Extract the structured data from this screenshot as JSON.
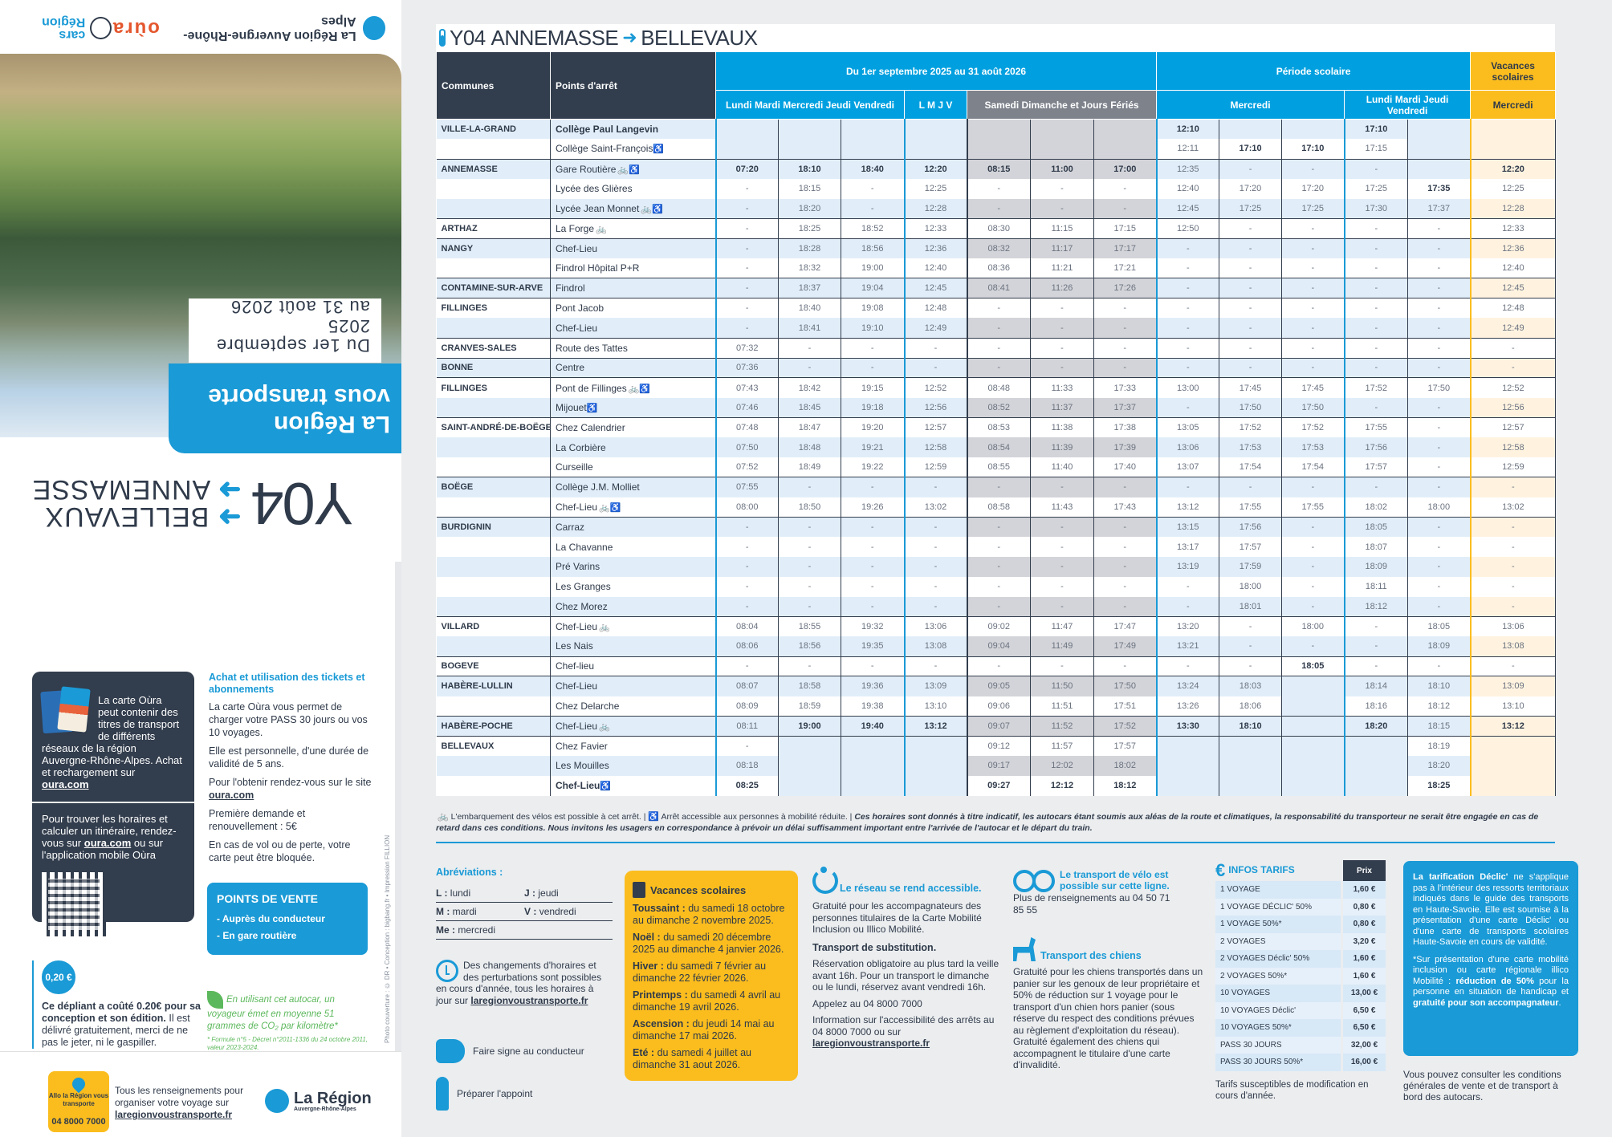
{
  "cover": {
    "route": "Y04",
    "direction_1": "BELLEVAUX",
    "direction_2": "ANNEMASSE",
    "banner_line1": "La Région",
    "banner_line2": "vous transporte",
    "dates_line1": "Du 1er septembre 2025",
    "dates_line2": "au 31 août 2026",
    "logos": [
      "La Région Auvergne-Rhône-Alpes",
      "oùra",
      "cars Région"
    ]
  },
  "oura_card": {
    "text": "La carte Oùra peut contenir des titres de transport de différents réseaux de la région Auvergne-Rhône-Alpes. Achat et rechargement sur",
    "link": "oura.com",
    "find_text_1": "Pour trouver les horaires et calculer un itinéraire, rendez-vous sur",
    "find_link": "oura.com",
    "find_text_2": "ou sur l'application mobile Oùra"
  },
  "achat": {
    "title": "Achat et utilisation des tickets et abonnements",
    "p1": "La carte Oùra vous permet de charger votre PASS 30 jours ou vos 10 voyages.",
    "p2": "Elle est personnelle, d'une durée de validité de 5 ans.",
    "p3": "Pour l'obtenir rendez-vous sur le site",
    "p3_link": "oura.com",
    "p4": "Première demande et renouvellement : 5€",
    "p5": "En cas de vol ou de perte, votre carte peut être bloquée."
  },
  "points_de_vente": {
    "title": "POINTS DE VENTE",
    "items": [
      "- Auprès du conducteur",
      "- En gare routière"
    ]
  },
  "cost": {
    "coin": "0,20 €",
    "bold": "Ce dépliant a coûté 0.20€ pour sa conception et son édition.",
    "text": "Il est délivré gratuitement, merci de ne pas le jeter, ni le gaspiller."
  },
  "co2": {
    "text": "En utilisant cet autocar, un voyageur émet en moyenne 51 grammes de CO₂ par kilomètre*",
    "note": "* Formule n°5 - Décret n°2011-1336 du 24 octobre 2011, valeur 2023-2024."
  },
  "credit": "Photo couverture : © DR • Conception : bigbang.fr • Impression FILLION",
  "allo": {
    "label": "Allo la Région vous transporte",
    "phone": "04 8000 7000"
  },
  "rens": {
    "text": "Tous les renseignements pour organiser votre voyage sur",
    "link": "laregionvoustransporte.fr"
  },
  "region_logo": {
    "title": "La Région",
    "subtitle": "Auvergne-Rhône-Alpes"
  },
  "timetable": {
    "route": "Y04",
    "from": "ANNEMASSE",
    "to": "BELLEVAUX",
    "headers": {
      "communes": "Communes",
      "stops": "Points d'arrêt",
      "period_all": "Du 1er septembre 2025 au 31 août 2026",
      "period_school": "Période scolaire",
      "period_holiday": "Vacances scolaires",
      "lmmejv": "Lundi Mardi Mercredi Jeudi Vendredi",
      "lmjv": "L M J V",
      "weekend": "Samedi Dimanche et Jours Fériés",
      "school_wed": "Mercredi",
      "school_lmjv": "Lundi Mardi Jeudi Vendredi",
      "holiday_wed": "Mercredi"
    },
    "rows": [
      {
        "commune": "VILLE-LA-GRAND",
        "stop": "Collège Paul Langevin",
        "bold": true,
        "icons": "",
        "times": [
          "",
          "",
          "",
          "",
          "",
          "",
          "",
          "12:10",
          "",
          "",
          "17:10",
          "",
          ""
        ]
      },
      {
        "commune": "",
        "stop": "Collège Saint-François",
        "icons": "pmr",
        "times": [
          "",
          "",
          "",
          "",
          "",
          "",
          "",
          "12:11",
          "17:10",
          "17:10",
          "17:15",
          "",
          ""
        ]
      },
      {
        "commune": "ANNEMASSE",
        "stop": "Gare Routière",
        "icons": "bike pmr",
        "times": [
          "07:20",
          "18:10",
          "18:40",
          "12:20",
          "08:15",
          "11:00",
          "17:00",
          "12:35",
          "-",
          "-",
          "-",
          "",
          "12:20"
        ]
      },
      {
        "commune": "",
        "stop": "Lycée des Glières",
        "icons": "",
        "times": [
          "-",
          "18:15",
          "-",
          "12:25",
          "-",
          "-",
          "-",
          "12:40",
          "17:20",
          "17:20",
          "17:25",
          "17:35",
          "12:25"
        ]
      },
      {
        "commune": "",
        "stop": "Lycée Jean Monnet",
        "icons": "bike pmr",
        "times": [
          "-",
          "18:20",
          "-",
          "12:28",
          "-",
          "-",
          "-",
          "12:45",
          "17:25",
          "17:25",
          "17:30",
          "17:37",
          "12:28"
        ]
      },
      {
        "commune": "ARTHAZ",
        "stop": "La Forge",
        "icons": "bike",
        "times": [
          "-",
          "18:25",
          "18:52",
          "12:33",
          "08:30",
          "11:15",
          "17:15",
          "12:50",
          "-",
          "-",
          "-",
          "-",
          "12:33"
        ]
      },
      {
        "commune": "NANGY",
        "stop": "Chef-Lieu",
        "icons": "",
        "times": [
          "-",
          "18:28",
          "18:56",
          "12:36",
          "08:32",
          "11:17",
          "17:17",
          "-",
          "-",
          "-",
          "-",
          "-",
          "12:36"
        ]
      },
      {
        "commune": "",
        "stop": "Findrol Hôpital P+R",
        "icons": "",
        "times": [
          "-",
          "18:32",
          "19:00",
          "12:40",
          "08:36",
          "11:21",
          "17:21",
          "-",
          "-",
          "-",
          "-",
          "-",
          "12:40"
        ]
      },
      {
        "commune": "CONTAMINE-SUR-ARVE",
        "stop": "Findrol",
        "icons": "",
        "times": [
          "-",
          "18:37",
          "19:04",
          "12:45",
          "08:41",
          "11:26",
          "17:26",
          "-",
          "-",
          "-",
          "-",
          "-",
          "12:45"
        ]
      },
      {
        "commune": "FILLINGES",
        "stop": "Pont Jacob",
        "icons": "",
        "times": [
          "-",
          "18:40",
          "19:08",
          "12:48",
          "-",
          "-",
          "-",
          "-",
          "-",
          "-",
          "-",
          "-",
          "12:48"
        ]
      },
      {
        "commune": "",
        "stop": "Chef-Lieu",
        "icons": "",
        "times": [
          "-",
          "18:41",
          "19:10",
          "12:49",
          "-",
          "-",
          "-",
          "-",
          "-",
          "-",
          "-",
          "-",
          "12:49"
        ]
      },
      {
        "commune": "CRANVES-SALES",
        "stop": "Route des Tattes",
        "icons": "",
        "times": [
          "07:32",
          "-",
          "-",
          "-",
          "-",
          "-",
          "-",
          "-",
          "-",
          "-",
          "-",
          "-",
          "-"
        ]
      },
      {
        "commune": "BONNE",
        "stop": "Centre",
        "icons": "",
        "times": [
          "07:36",
          "-",
          "-",
          "-",
          "-",
          "-",
          "-",
          "-",
          "-",
          "-",
          "-",
          "-",
          "-"
        ]
      },
      {
        "commune": "FILLINGES",
        "stop": "Pont de Fillinges",
        "icons": "bike pmr",
        "times": [
          "07:43",
          "18:42",
          "19:15",
          "12:52",
          "08:48",
          "11:33",
          "17:33",
          "13:00",
          "17:45",
          "17:45",
          "17:52",
          "17:50",
          "12:52"
        ]
      },
      {
        "commune": "",
        "stop": "Mijouet",
        "icons": "pmr",
        "times": [
          "07:46",
          "18:45",
          "19:18",
          "12:56",
          "08:52",
          "11:37",
          "17:37",
          "-",
          "17:50",
          "17:50",
          "-",
          "-",
          "12:56"
        ]
      },
      {
        "commune": "SAINT-ANDRÉ-DE-BOËGE",
        "stop": "Chez Calendrier",
        "icons": "",
        "times": [
          "07:48",
          "18:47",
          "19:20",
          "12:57",
          "08:53",
          "11:38",
          "17:38",
          "13:05",
          "17:52",
          "17:52",
          "17:55",
          "-",
          "12:57"
        ]
      },
      {
        "commune": "",
        "stop": "La Corbière",
        "icons": "",
        "times": [
          "07:50",
          "18:48",
          "19:21",
          "12:58",
          "08:54",
          "11:39",
          "17:39",
          "13:06",
          "17:53",
          "17:53",
          "17:56",
          "-",
          "12:58"
        ]
      },
      {
        "commune": "",
        "stop": "Curseille",
        "icons": "",
        "times": [
          "07:52",
          "18:49",
          "19:22",
          "12:59",
          "08:55",
          "11:40",
          "17:40",
          "13:07",
          "17:54",
          "17:54",
          "17:57",
          "-",
          "12:59"
        ]
      },
      {
        "commune": "BOËGE",
        "stop": "Collège J.M. Molliet",
        "icons": "",
        "times": [
          "07:55",
          "-",
          "-",
          "-",
          "-",
          "-",
          "-",
          "-",
          "-",
          "-",
          "-",
          "-",
          "-"
        ]
      },
      {
        "commune": "",
        "stop": "Chef-Lieu",
        "icons": "bike pmr",
        "times": [
          "08:00",
          "18:50",
          "19:26",
          "13:02",
          "08:58",
          "11:43",
          "17:43",
          "13:12",
          "17:55",
          "17:55",
          "18:02",
          "18:00",
          "13:02"
        ]
      },
      {
        "commune": "BURDIGNIN",
        "stop": "Carraz",
        "icons": "",
        "times": [
          "-",
          "-",
          "-",
          "-",
          "-",
          "-",
          "-",
          "13:15",
          "17:56",
          "-",
          "18:05",
          "-",
          "-"
        ]
      },
      {
        "commune": "",
        "stop": "La Chavanne",
        "icons": "",
        "times": [
          "-",
          "-",
          "-",
          "-",
          "-",
          "-",
          "-",
          "13:17",
          "17:57",
          "-",
          "18:07",
          "-",
          "-"
        ]
      },
      {
        "commune": "",
        "stop": "Pré Varins",
        "icons": "",
        "times": [
          "-",
          "-",
          "-",
          "-",
          "-",
          "-",
          "-",
          "13:19",
          "17:59",
          "-",
          "18:09",
          "-",
          "-"
        ]
      },
      {
        "commune": "",
        "stop": "Les Granges",
        "icons": "",
        "times": [
          "-",
          "-",
          "-",
          "-",
          "-",
          "-",
          "-",
          "-",
          "18:00",
          "-",
          "18:11",
          "-",
          "-"
        ]
      },
      {
        "commune": "",
        "stop": "Chez Morez",
        "icons": "",
        "times": [
          "-",
          "-",
          "-",
          "-",
          "-",
          "-",
          "-",
          "-",
          "18:01",
          "-",
          "18:12",
          "-",
          "-"
        ]
      },
      {
        "commune": "VILLARD",
        "stop": "Chef-Lieu",
        "icons": "bike",
        "times": [
          "08:04",
          "18:55",
          "19:32",
          "13:06",
          "09:02",
          "11:47",
          "17:47",
          "13:20",
          "-",
          "18:00",
          "-",
          "18:05",
          "13:06"
        ]
      },
      {
        "commune": "",
        "stop": "Les Nais",
        "icons": "",
        "times": [
          "08:06",
          "18:56",
          "19:35",
          "13:08",
          "09:04",
          "11:49",
          "17:49",
          "13:21",
          "-",
          "-",
          "-",
          "18:09",
          "13:08"
        ]
      },
      {
        "commune": "BOGEVE",
        "stop": "Chef-lieu",
        "icons": "",
        "times": [
          "-",
          "-",
          "-",
          "-",
          "-",
          "-",
          "-",
          "-",
          "-",
          "18:05",
          "-",
          "-",
          "-"
        ]
      },
      {
        "commune": "HABÈRE-LULLIN",
        "stop": "Chef-Lieu",
        "icons": "",
        "times": [
          "08:07",
          "18:58",
          "19:36",
          "13:09",
          "09:05",
          "11:50",
          "17:50",
          "13:24",
          "18:03",
          "",
          "18:14",
          "18:10",
          "13:09"
        ]
      },
      {
        "commune": "",
        "stop": "Chez Delarche",
        "icons": "",
        "times": [
          "08:09",
          "18:59",
          "19:38",
          "13:10",
          "09:06",
          "11:51",
          "17:51",
          "13:26",
          "18:06",
          "",
          "18:16",
          "18:12",
          "13:10"
        ]
      },
      {
        "commune": "HABÈRE-POCHE",
        "stop": "Chef-Lieu",
        "icons": "bike",
        "times": [
          "08:11",
          "19:00",
          "19:40",
          "13:12",
          "09:07",
          "11:52",
          "17:52",
          "13:30",
          "18:10",
          "",
          "18:20",
          "18:15",
          "13:12"
        ]
      },
      {
        "commune": "BELLEVAUX",
        "stop": "Chez Favier",
        "icons": "",
        "times": [
          "-",
          "",
          "",
          "",
          "09:12",
          "11:57",
          "17:57",
          "",
          "",
          "",
          "",
          "18:19",
          ""
        ]
      },
      {
        "commune": "",
        "stop": "Les Mouilles",
        "icons": "",
        "times": [
          "08:18",
          "",
          "",
          "",
          "09:17",
          "12:02",
          "18:02",
          "",
          "",
          "",
          "",
          "18:20",
          ""
        ]
      },
      {
        "commune": "",
        "stop": "Chef-Lieu",
        "bold": true,
        "icons": "pmr",
        "times": [
          "08:25",
          "",
          "",
          "",
          "09:27",
          "12:12",
          "18:12",
          "",
          "",
          "",
          "",
          "18:25",
          ""
        ]
      }
    ],
    "bold_cells": [
      "0:7",
      "0:10",
      "1:8",
      "1:9",
      "2:0",
      "2:1",
      "2:2",
      "2:3",
      "2:4",
      "2:5",
      "2:6",
      "2:12",
      "3:11",
      "27:9",
      "30:1",
      "30:2",
      "30:3",
      "30:7",
      "30:8",
      "30:10",
      "30:12",
      "33:0",
      "33:4",
      "33:5",
      "33:6",
      "33:11"
    ]
  },
  "footnote": {
    "bike": "L'embarquement des vélos est possible à cet arrêt. |",
    "pmr": "Arrêt accessible aux personnes à mobilité réduite. |",
    "warning": "Ces horaires sont donnés à titre indicatif, les autocars étant soumis aux aléas de la route et climatiques, la responsabilité du transporteur ne serait être engagée en cas de retard dans ces conditions. Nous invitons les usagers en correspondance à prévoir un délai suffisamment important entre l'arrivée de l'autocar et le départ du train."
  },
  "abbreviations": {
    "title": "Abréviations :",
    "items": [
      {
        "k": "L :",
        "v": "lundi"
      },
      {
        "k": "J :",
        "v": "jeudi"
      },
      {
        "k": "M :",
        "v": "mardi"
      },
      {
        "k": "V :",
        "v": "vendredi"
      },
      {
        "k": "Me :",
        "v": "mercredi"
      }
    ]
  },
  "changes": {
    "text": "Des changements d'horaires et des perturbations sont possibles en cours d'année, tous les horaires à jour sur",
    "link": "laregionvoustransporte.fr"
  },
  "sign_driver": "Faire signe au conducteur",
  "prepare_change": "Préparer l'appoint",
  "vacances": {
    "title": "Vacances scolaires",
    "items": [
      {
        "k": "Toussaint :",
        "v": "du samedi 18 octobre au dimanche 2 novembre 2025."
      },
      {
        "k": "Noël :",
        "v": "du samedi 20 décembre 2025 au dimanche 4 janvier 2026."
      },
      {
        "k": "Hiver :",
        "v": "du samedi 7 février au dimanche 22 février 2026."
      },
      {
        "k": "Printemps :",
        "v": "du samedi 4 avril au dimanche 19 avril 2026."
      },
      {
        "k": "Ascension :",
        "v": "du jeudi 14 mai au dimanche 17 mai 2026."
      },
      {
        "k": "Eté :",
        "v": "du samedi 4 juillet au dimanche 31 aout 2026."
      }
    ]
  },
  "accessible": {
    "title": "Le réseau se rend accessible.",
    "p1": "Gratuité pour les accompagnateurs des personnes titulaires de la Carte Mobilité Inclusion ou Illico Mobilité.",
    "sub_title": "Transport de substitution.",
    "p2": "Réservation obligatoire au plus tard la veille avant 16h. Pour un transport le dimanche ou le lundi, réservez avant vendredi 16h.",
    "p3": "Appelez au 04 8000 7000",
    "p4": "Information sur l'accessibilité des arrêts au 04 8000 7000 ou sur",
    "link": "laregionvoustransporte.fr"
  },
  "velo": {
    "title": "Le transport de vélo est possible sur cette ligne.",
    "text": "Plus de renseignements au 04 50 71 85 55"
  },
  "chiens": {
    "title": "Transport des chiens",
    "text": "Gratuité pour les chiens transportés dans un panier sur les genoux de leur propriétaire et 50% de réduction sur 1 voyage pour le transport d'un chien hors panier (sous réserve du respect des conditions prévues au règlement d'exploitation du réseau). Gratuité également des chiens qui accompagnent le titulaire d'une carte d'invalidité."
  },
  "tarifs": {
    "title": "INFOS TARIFS",
    "price_header": "Prix",
    "items": [
      {
        "label": "1 VOYAGE",
        "price": "1,60 €"
      },
      {
        "label": "1 VOYAGE DÉCLIC' 50%",
        "price": "0,80 €"
      },
      {
        "label": "1 VOYAGE 50%*",
        "price": "0,80 €"
      },
      {
        "label": "2 VOYAGES",
        "price": "3,20 €"
      },
      {
        "label": "2 VOYAGES Déclic' 50%",
        "price": "1,60 €"
      },
      {
        "label": "2 VOYAGES 50%*",
        "price": "1,60 €"
      },
      {
        "label": "10 VOYAGES",
        "price": "13,00 €"
      },
      {
        "label": "10 VOYAGES Déclic'",
        "price": "6,50 €"
      },
      {
        "label": "10 VOYAGES 50%*",
        "price": "6,50 €"
      },
      {
        "label": "PASS 30 JOURS",
        "price": "32,00 €"
      },
      {
        "label": "PASS 30 JOURS 50%*",
        "price": "16,00 €"
      }
    ],
    "note": "Tarifs susceptibles de modification en cours d'année."
  },
  "declic": {
    "p1_bold": "La tarification Déclic'",
    "p1": "ne s'applique pas à l'intérieur des ressorts territoriaux indiqués dans le guide des transports en Haute-Savoie. Elle est soumise à la présentation d'une carte Déclic' ou d'une carte de transports scolaires Haute-Savoie en cours de validité.",
    "p2a": "*Sur présentation d'une carte mobilité inclusion ou carte régionale illico Mobilité :",
    "p2b": "réduction de 50%",
    "p2c": "pour la personne en situation de handicap et",
    "p2d": "gratuité pour son accompagnateur",
    "p2e": "."
  },
  "cgv": "Vous pouvez consulter les conditions générales de vente et de transport à bord des autocars.",
  "colors": {
    "blue": "#00a0e0",
    "dark": "#323d4d",
    "grey": "#7d828b",
    "yellow": "#fbbd1e"
  }
}
